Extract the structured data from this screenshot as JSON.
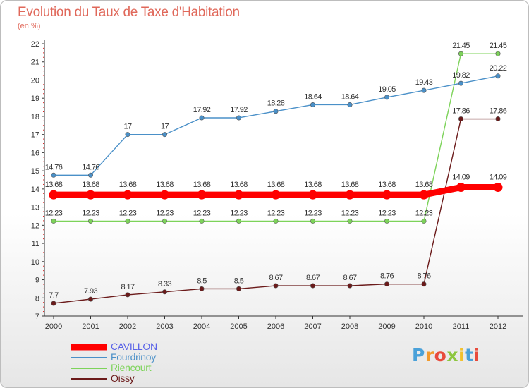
{
  "title": "Evolution du Taux de Taxe d'Habitation",
  "subtitle": "(en %)",
  "logo": {
    "text": "Proxiti",
    "letter_colors": [
      "#4aa1d9",
      "#f29a2e",
      "#e84b3c",
      "#8dc63f",
      "#f2c12e",
      "#4aa1d9",
      "#e84b3c"
    ]
  },
  "chart_data": {
    "type": "line",
    "title": "Evolution du Taux de Taxe d'Habitation",
    "ylabel": "(en %)",
    "xlabel": "",
    "x": [
      "2000",
      "2001",
      "2002",
      "2003",
      "2004",
      "2005",
      "2006",
      "2007",
      "2008",
      "2009",
      "2010",
      "2011",
      "2012"
    ],
    "ylim": [
      7,
      22
    ],
    "yticks": [
      "7",
      "8",
      "9",
      "10",
      "11",
      "12",
      "13",
      "14",
      "15",
      "16",
      "17",
      "18",
      "19",
      "20",
      "21",
      "22"
    ],
    "grid": false,
    "legend_position": "bottom-left",
    "series": [
      {
        "name": "CAVILLON",
        "color": "#ff0000",
        "values": [
          13.68,
          13.68,
          13.68,
          13.68,
          13.68,
          13.68,
          13.68,
          13.68,
          13.68,
          13.68,
          13.68,
          14.09,
          14.09
        ],
        "labels": [
          "13.68",
          "13.68",
          "13.68",
          "13.68",
          "13.68",
          "13.68",
          "13.68",
          "13.68",
          "13.68",
          "13.68",
          "13.68",
          "14.09",
          "14.09"
        ]
      },
      {
        "name": "Fourdrinoy",
        "color": "#4a90c8",
        "values": [
          14.76,
          14.76,
          17,
          17,
          17.92,
          17.92,
          18.28,
          18.64,
          18.64,
          19.05,
          19.43,
          19.82,
          20.22
        ],
        "labels": [
          "14.76",
          "14.76",
          "17",
          "17",
          "17.92",
          "17.92",
          "18.28",
          "18.64",
          "18.64",
          "19.05",
          "19.43",
          "19.82",
          "20.22"
        ]
      },
      {
        "name": "Riencourt",
        "color": "#7dd35a",
        "values": [
          12.23,
          12.23,
          12.23,
          12.23,
          12.23,
          12.23,
          12.23,
          12.23,
          12.23,
          12.23,
          12.23,
          21.45,
          21.45
        ],
        "labels": [
          "12.23",
          "12.23",
          "12.23",
          "12.23",
          "12.23",
          "12.23",
          "12.23",
          "12.23",
          "12.23",
          "12.23",
          "12.23",
          "21.45",
          "21.45"
        ]
      },
      {
        "name": "Oissy",
        "color": "#6b1a1a",
        "values": [
          7.7,
          7.93,
          8.17,
          8.33,
          8.5,
          8.5,
          8.67,
          8.67,
          8.67,
          8.76,
          8.76,
          17.86,
          17.86
        ],
        "labels": [
          "7.7",
          "7.93",
          "8.17",
          "8.33",
          "8.5",
          "8.5",
          "8.67",
          "8.67",
          "8.67",
          "8.76",
          "8.76",
          "17.86",
          "17.86"
        ]
      }
    ]
  }
}
